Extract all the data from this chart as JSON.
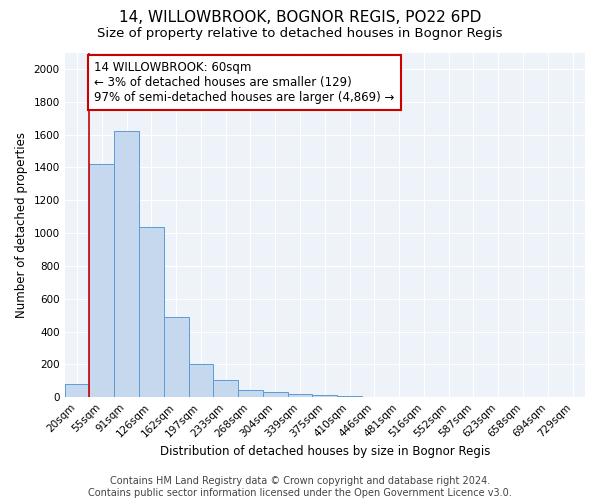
{
  "title_line1": "14, WILLOWBROOK, BOGNOR REGIS, PO22 6PD",
  "title_line2": "Size of property relative to detached houses in Bognor Regis",
  "xlabel": "Distribution of detached houses by size in Bognor Regis",
  "ylabel": "Number of detached properties",
  "categories": [
    "20sqm",
    "55sqm",
    "91sqm",
    "126sqm",
    "162sqm",
    "197sqm",
    "233sqm",
    "268sqm",
    "304sqm",
    "339sqm",
    "375sqm",
    "410sqm",
    "446sqm",
    "481sqm",
    "516sqm",
    "552sqm",
    "587sqm",
    "623sqm",
    "658sqm",
    "694sqm",
    "729sqm"
  ],
  "values": [
    80,
    1420,
    1620,
    1040,
    490,
    205,
    105,
    45,
    30,
    20,
    15,
    10,
    0,
    0,
    0,
    0,
    0,
    0,
    0,
    0,
    0
  ],
  "bar_color": "#c5d8ed",
  "bar_edge_color": "#5b9bd5",
  "vline_index": 1,
  "annotation_text": "14 WILLOWBROOK: 60sqm\n← 3% of detached houses are smaller (129)\n97% of semi-detached houses are larger (4,869) →",
  "annotation_box_color": "#ffffff",
  "annotation_border_color": "#cc0000",
  "vline_color": "#cc0000",
  "ylim": [
    0,
    2100
  ],
  "yticks": [
    0,
    200,
    400,
    600,
    800,
    1000,
    1200,
    1400,
    1600,
    1800,
    2000
  ],
  "footer_line1": "Contains HM Land Registry data © Crown copyright and database right 2024.",
  "footer_line2": "Contains public sector information licensed under the Open Government Licence v3.0.",
  "title_fontsize": 11,
  "subtitle_fontsize": 9.5,
  "axis_label_fontsize": 8.5,
  "tick_fontsize": 7.5,
  "annotation_fontsize": 8.5,
  "footer_fontsize": 7,
  "bg_color": "#eef3f9"
}
